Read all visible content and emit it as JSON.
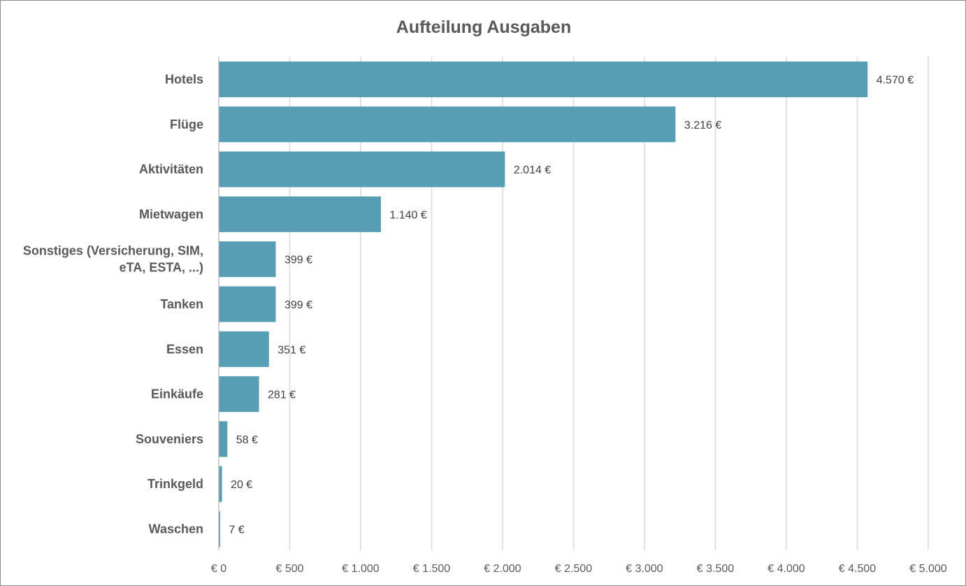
{
  "chart_data": {
    "type": "bar",
    "orientation": "horizontal",
    "title": "Aufteilung Ausgaben",
    "xlabel": "",
    "ylabel": "",
    "categories": [
      [
        "Hotels"
      ],
      [
        "Flüge"
      ],
      [
        "Aktivitäten"
      ],
      [
        "Mietwagen"
      ],
      [
        "Sonstiges (Versicherung, SIM,",
        "eTA, ESTA, ...)"
      ],
      [
        "Tanken"
      ],
      [
        "Essen"
      ],
      [
        "Einkäufe"
      ],
      [
        "Souveniers"
      ],
      [
        "Trinkgeld"
      ],
      [
        "Waschen"
      ]
    ],
    "values": [
      4570,
      3216,
      2014,
      1140,
      399,
      399,
      351,
      281,
      58,
      20,
      7
    ],
    "data_labels": [
      "4.570 €",
      "3.216 €",
      "2.014 €",
      "1.140 €",
      "399 €",
      "399 €",
      "351 €",
      "281 €",
      "58 €",
      "20 €",
      "7 €"
    ],
    "xlim": [
      0,
      5000
    ],
    "xticks": [
      0,
      500,
      1000,
      1500,
      2000,
      2500,
      3000,
      3500,
      4000,
      4500,
      5000
    ],
    "xtick_labels": [
      "€ 0",
      "€ 500",
      "€ 1.000",
      "€ 1.500",
      "€ 2.000",
      "€ 2.500",
      "€ 3.000",
      "€ 3.500",
      "€ 4.000",
      "€ 4.500",
      "€ 5.000"
    ],
    "grid": true,
    "legend": "none",
    "bar_color": "#579db3"
  }
}
